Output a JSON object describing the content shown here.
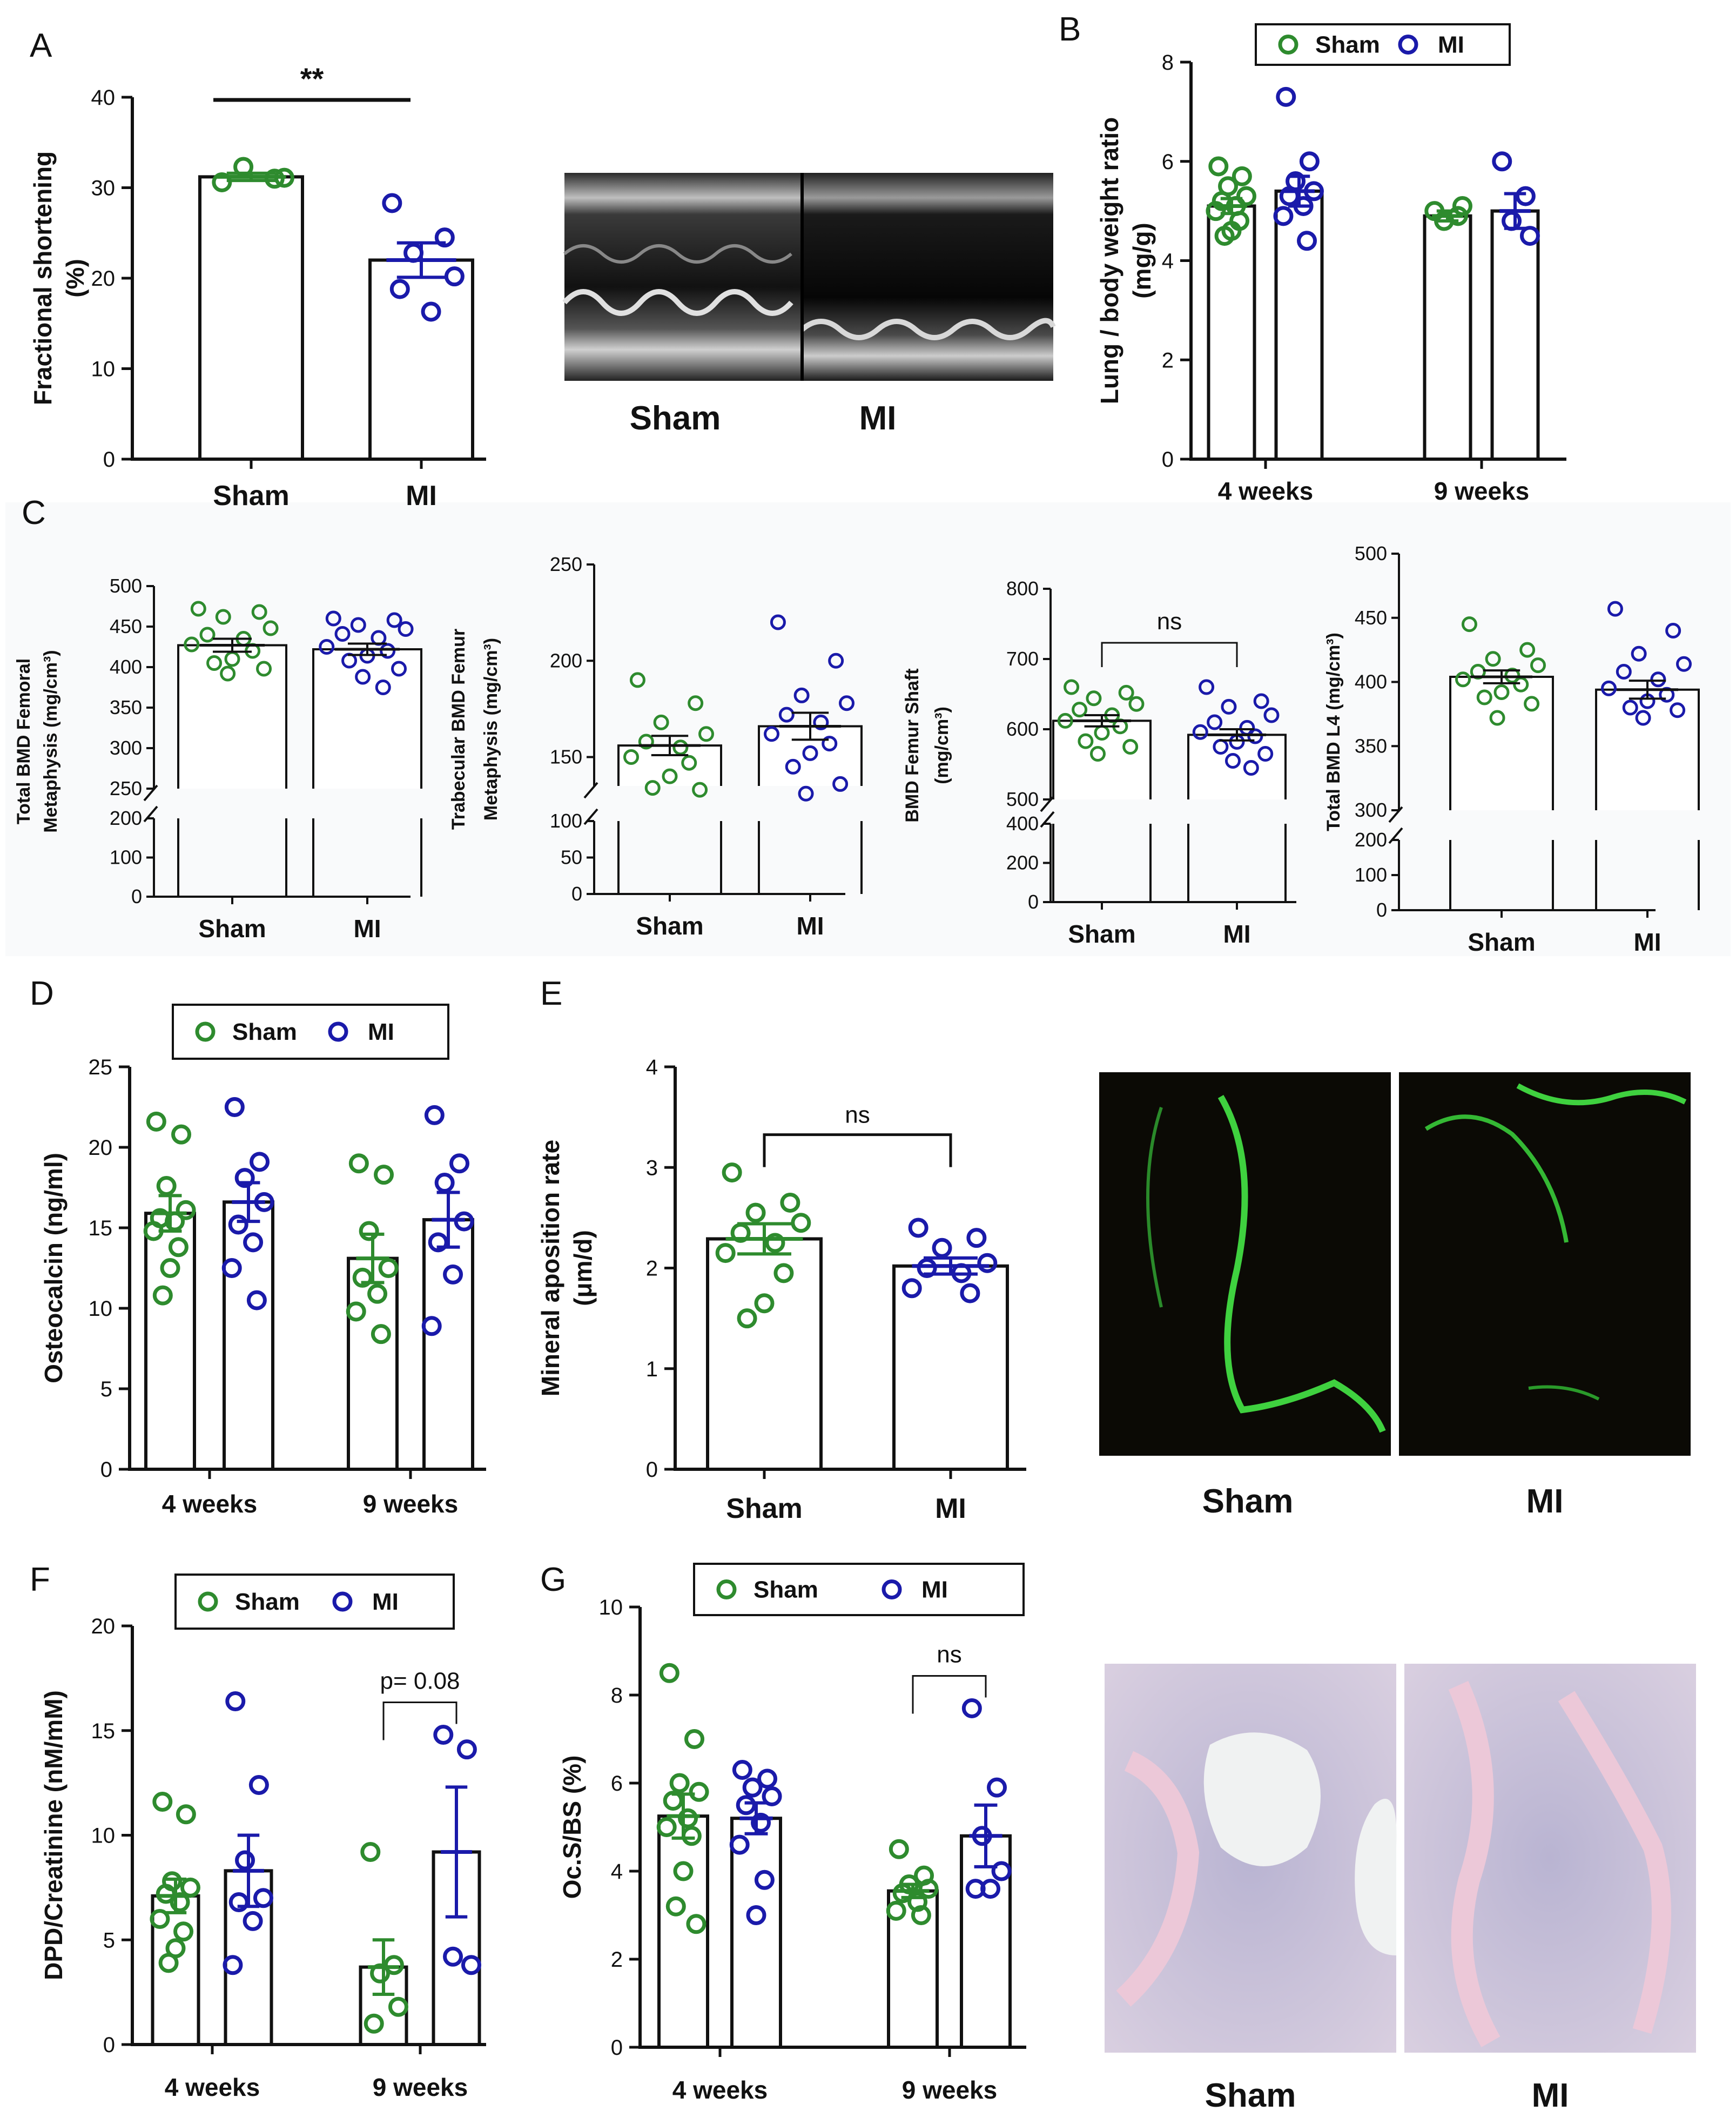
{
  "colors": {
    "sham": "#2e8b2e",
    "mi": "#1a1aaa",
    "axis": "#111111"
  },
  "legend": {
    "sham": "Sham",
    "mi": "MI"
  },
  "images": {
    "echo": {
      "labels": [
        "Sham",
        "MI"
      ]
    },
    "fluor": {
      "labels": [
        "Sham",
        "MI"
      ]
    },
    "trap": {
      "labels": [
        "Sham",
        "MI"
      ]
    }
  },
  "chart_data": [
    {
      "id": "A",
      "panel_label": "A",
      "type": "bar",
      "ylabel": [
        "Fractional shortening",
        "(%)"
      ],
      "ylim": [
        0,
        40
      ],
      "yticks": [
        0,
        10,
        20,
        30,
        40
      ],
      "categories": [
        "Sham",
        "MI"
      ],
      "series": [
        {
          "name": "Sham",
          "mean": 31.2,
          "sem": 0.4,
          "points": [
            30.6,
            31.0,
            32.3,
            31.1
          ]
        },
        {
          "name": "MI",
          "mean": 22.0,
          "sem": 1.9,
          "points": [
            28.3,
            24.5,
            22.8,
            20.2,
            18.8,
            16.3
          ]
        }
      ],
      "significance": [
        {
          "text": "**",
          "between": [
            0,
            1
          ]
        }
      ]
    },
    {
      "id": "B",
      "panel_label": "B",
      "type": "bar",
      "ylabel": [
        "Lung / body weight ratio",
        "(mg/g)"
      ],
      "ylim": [
        0,
        8
      ],
      "yticks": [
        0,
        2,
        4,
        6,
        8
      ],
      "categories": [
        "4 weeks",
        "9 weeks"
      ],
      "legend": true,
      "series": [
        {
          "name": "Sham",
          "means": [
            5.1,
            4.9
          ],
          "sems": [
            0.15,
            0.1
          ],
          "points": [
            [
              5.9,
              5.7,
              5.5,
              5.3,
              5.2,
              5.1,
              5.0,
              4.8,
              4.6,
              4.5
            ],
            [
              5.0,
              4.9,
              4.8,
              5.1
            ]
          ]
        },
        {
          "name": "MI",
          "means": [
            5.4,
            5.0
          ],
          "sems": [
            0.3,
            0.35
          ],
          "points": [
            [
              7.3,
              6.0,
              5.6,
              5.4,
              5.3,
              5.1,
              4.9,
              4.4
            ],
            [
              6.0,
              5.3,
              4.8,
              4.5
            ]
          ]
        }
      ]
    },
    {
      "id": "C1",
      "panel_label": "C",
      "type": "bar",
      "ylabel": [
        "Total BMD Femoral",
        "Metaphysis (mg/cm³)"
      ],
      "categories": [
        "Sham",
        "MI"
      ],
      "upper": {
        "min": 250,
        "max": 500,
        "ticks": [
          250,
          300,
          350,
          400,
          450,
          500
        ]
      },
      "lower": {
        "min": 0,
        "max": 200,
        "ticks": [
          0,
          100,
          200
        ]
      },
      "series": [
        {
          "name": "Sham",
          "mean": 427,
          "sem": 8,
          "points": [
            472,
            468,
            462,
            448,
            440,
            435,
            428,
            420,
            410,
            405,
            398,
            392
          ]
        },
        {
          "name": "MI",
          "mean": 422,
          "sem": 7,
          "points": [
            460,
            458,
            452,
            447,
            441,
            436,
            425,
            420,
            414,
            408,
            398,
            388,
            375
          ]
        }
      ]
    },
    {
      "id": "C2",
      "type": "bar",
      "ylabel": [
        "Trabecular BMD Femur",
        "Metaphysis (mg/cm³)"
      ],
      "categories": [
        "Sham",
        "MI"
      ],
      "upper": {
        "min": 135,
        "max": 250,
        "ticks": [
          150,
          200,
          250
        ]
      },
      "lower": {
        "min": 0,
        "max": 100,
        "ticks": [
          0,
          50,
          100
        ]
      },
      "series": [
        {
          "name": "Sham",
          "mean": 156,
          "sem": 5,
          "points": [
            190,
            178,
            168,
            162,
            158,
            155,
            150,
            147,
            140,
            134,
            133
          ]
        },
        {
          "name": "MI",
          "mean": 166,
          "sem": 7,
          "points": [
            220,
            200,
            182,
            178,
            172,
            168,
            162,
            157,
            152,
            145,
            136,
            131
          ]
        }
      ]
    },
    {
      "id": "C3",
      "type": "bar",
      "ylabel": [
        "BMD Femur Shaft",
        "(mg/cm³)"
      ],
      "categories": [
        "Sham",
        "MI"
      ],
      "upper": {
        "min": 500,
        "max": 800,
        "ticks": [
          500,
          600,
          700,
          800
        ]
      },
      "lower": {
        "min": 0,
        "max": 400,
        "ticks": [
          0,
          200,
          400
        ]
      },
      "series": [
        {
          "name": "Sham",
          "mean": 612,
          "sem": 8,
          "points": [
            660,
            652,
            644,
            636,
            628,
            620,
            612,
            604,
            595,
            583,
            575,
            565
          ]
        },
        {
          "name": "MI",
          "mean": 592,
          "sem": 8,
          "points": [
            660,
            640,
            632,
            620,
            610,
            602,
            596,
            590,
            582,
            575,
            565,
            555,
            545
          ]
        }
      ],
      "significance": [
        {
          "text": "ns",
          "between": [
            0,
            1
          ]
        }
      ]
    },
    {
      "id": "C4",
      "type": "bar",
      "ylabel": [
        "Total BMD L4 (mg/cm³)"
      ],
      "categories": [
        "Sham",
        "MI"
      ],
      "upper": {
        "min": 300,
        "max": 500,
        "ticks": [
          300,
          350,
          400,
          450,
          500
        ]
      },
      "lower": {
        "min": 0,
        "max": 200,
        "ticks": [
          0,
          100,
          200
        ]
      },
      "series": [
        {
          "name": "Sham",
          "mean": 404,
          "sem": 5,
          "points": [
            445,
            425,
            418,
            413,
            408,
            405,
            402,
            398,
            392,
            388,
            383,
            372
          ]
        },
        {
          "name": "MI",
          "mean": 394,
          "sem": 7,
          "points": [
            457,
            440,
            422,
            414,
            408,
            402,
            395,
            390,
            385,
            380,
            378,
            372
          ]
        }
      ]
    },
    {
      "id": "D",
      "panel_label": "D",
      "type": "bar",
      "ylabel": [
        "Osteocalcin (ng/ml)"
      ],
      "ylim": [
        0,
        25
      ],
      "yticks": [
        0,
        5,
        10,
        15,
        20,
        25
      ],
      "categories": [
        "4 weeks",
        "9 weeks"
      ],
      "legend": true,
      "series": [
        {
          "name": "Sham",
          "means": [
            15.9,
            13.1
          ],
          "sems": [
            1.1,
            1.5
          ],
          "points": [
            [
              21.6,
              20.8,
              17.6,
              16.1,
              15.6,
              15.4,
              14.8,
              13.8,
              12.5,
              10.8
            ],
            [
              19.0,
              18.3,
              14.8,
              12.5,
              11.9,
              10.9,
              9.8,
              8.4
            ]
          ]
        },
        {
          "name": "MI",
          "means": [
            16.6,
            15.5
          ],
          "sems": [
            1.2,
            1.7
          ],
          "points": [
            [
              22.5,
              19.1,
              18.1,
              16.6,
              15.2,
              14.1,
              12.5,
              10.5
            ],
            [
              22.0,
              19.0,
              17.8,
              15.4,
              14.1,
              12.1,
              8.9
            ]
          ]
        }
      ]
    },
    {
      "id": "E",
      "panel_label": "E",
      "type": "bar",
      "ylabel": [
        "Mineral aposition rate",
        "(μm/d)"
      ],
      "ylim": [
        0,
        4
      ],
      "yticks": [
        0,
        1,
        2,
        3,
        4
      ],
      "categories": [
        "Sham",
        "MI"
      ],
      "series": [
        {
          "name": "Sham",
          "mean": 2.29,
          "sem": 0.15,
          "points": [
            2.95,
            2.65,
            2.55,
            2.45,
            2.35,
            2.25,
            2.15,
            1.95,
            1.65,
            1.5
          ]
        },
        {
          "name": "MI",
          "mean": 2.02,
          "sem": 0.08,
          "points": [
            2.4,
            2.3,
            2.2,
            2.05,
            2.0,
            1.95,
            1.8,
            1.75
          ]
        }
      ],
      "significance": [
        {
          "text": "ns",
          "between": [
            0,
            1
          ]
        }
      ]
    },
    {
      "id": "F",
      "panel_label": "F",
      "type": "bar",
      "ylabel": [
        "DPD/Creatinine (nM/mM)"
      ],
      "ylim": [
        0,
        20
      ],
      "yticks": [
        0,
        5,
        10,
        15,
        20
      ],
      "categories": [
        "4 weeks",
        "9 weeks"
      ],
      "legend": true,
      "series": [
        {
          "name": "Sham",
          "means": [
            7.1,
            3.7
          ],
          "sems": [
            0.8,
            1.3
          ],
          "points": [
            [
              11.6,
              11.0,
              7.8,
              7.5,
              7.2,
              6.8,
              6.0,
              5.4,
              4.6,
              3.9
            ],
            [
              9.2,
              3.8,
              3.4,
              1.8,
              1.0
            ]
          ]
        },
        {
          "name": "MI",
          "means": [
            8.3,
            9.2
          ],
          "sems": [
            1.7,
            3.1
          ],
          "points": [
            [
              16.4,
              12.4,
              8.8,
              7.0,
              6.8,
              5.9,
              3.8
            ],
            [
              14.8,
              14.1,
              4.2,
              3.8
            ]
          ]
        }
      ],
      "significance": [
        {
          "text": "p= 0.08",
          "group": 1
        }
      ]
    },
    {
      "id": "G",
      "panel_label": "G",
      "type": "bar",
      "ylabel": [
        "Oc.S/BS (%)"
      ],
      "ylim": [
        0,
        10
      ],
      "yticks": [
        0,
        2,
        4,
        6,
        8,
        10
      ],
      "categories": [
        "4 weeks",
        "9 weeks"
      ],
      "legend": true,
      "series": [
        {
          "name": "Sham",
          "means": [
            5.25,
            3.55
          ],
          "sems": [
            0.5,
            0.15
          ],
          "points": [
            [
              8.5,
              7.0,
              6.0,
              5.8,
              5.6,
              5.2,
              5.0,
              4.8,
              4.0,
              3.2,
              2.8
            ],
            [
              4.5,
              3.9,
              3.7,
              3.6,
              3.5,
              3.3,
              3.1,
              3.0
            ]
          ]
        },
        {
          "name": "MI",
          "means": [
            5.2,
            4.8
          ],
          "sems": [
            0.35,
            0.7
          ],
          "points": [
            [
              6.3,
              6.1,
              5.9,
              5.7,
              5.5,
              5.1,
              4.6,
              3.8,
              3.0
            ],
            [
              7.7,
              5.9,
              4.8,
              4.0,
              3.6,
              3.6
            ]
          ]
        }
      ],
      "significance": [
        {
          "text": "ns",
          "group": 1
        }
      ]
    }
  ]
}
